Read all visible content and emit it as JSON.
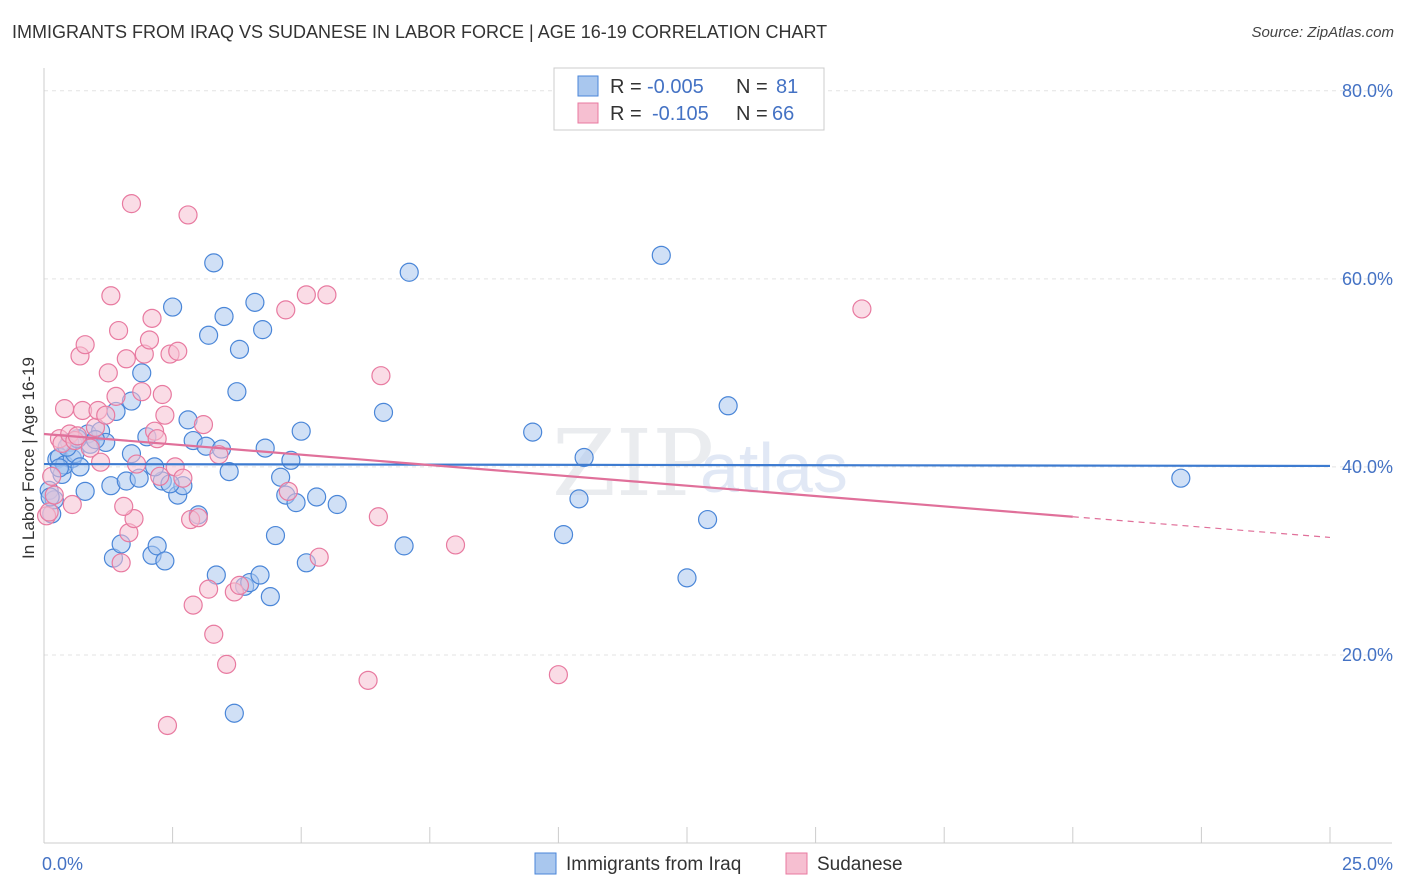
{
  "header": {
    "title": "IMMIGRANTS FROM IRAQ VS SUDANESE IN LABOR FORCE | AGE 16-19 CORRELATION CHART",
    "source": "Source: ZipAtlas.com"
  },
  "watermark": {
    "zip": "ZIP",
    "atlas": "atlas"
  },
  "legend": {
    "r_label": "R =",
    "n_label": "N =",
    "series": [
      {
        "r": "-0.005",
        "n": "81"
      },
      {
        "r": "-0.105",
        "n": "66"
      }
    ]
  },
  "chart_data": {
    "type": "scatter",
    "title": "IMMIGRANTS FROM IRAQ VS SUDANESE IN LABOR FORCE | AGE 16-19 CORRELATION CHART",
    "xlabel": "",
    "ylabel": "In Labor Force | Age 16-19",
    "xlim": [
      0,
      25
    ],
    "ylim": [
      0,
      82
    ],
    "x_tick_labels": [
      "0.0%",
      "25.0%"
    ],
    "y_ticks": [
      20,
      40,
      60,
      80
    ],
    "y_tick_labels": [
      "20.0%",
      "40.0%",
      "60.0%",
      "80.0%"
    ],
    "grid": true,
    "legend_position": "top-center",
    "colors": {
      "iraq": "#4a86d8",
      "sudanese": "#e87aa0",
      "iraq_fill": "#a9c7ee",
      "sudanese_fill": "#f6bfd1"
    },
    "series": [
      {
        "name": "Immigrants from Iraq",
        "r": -0.005,
        "n": 81,
        "trend": {
          "x": [
            0.0,
            25.0
          ],
          "y": [
            40.3,
            40.1
          ],
          "dashed_from": null
        },
        "points": [
          [
            0.1,
            37.5
          ],
          [
            0.15,
            35.0
          ],
          [
            0.2,
            36.5
          ],
          [
            0.25,
            40.8
          ],
          [
            0.3,
            41.0
          ],
          [
            0.35,
            39.2
          ],
          [
            0.4,
            40.2
          ],
          [
            0.5,
            42.6
          ],
          [
            0.55,
            40.9
          ],
          [
            0.6,
            41.4
          ],
          [
            0.7,
            40.0
          ],
          [
            0.8,
            37.4
          ],
          [
            0.85,
            43.5
          ],
          [
            0.9,
            42.4
          ],
          [
            1.1,
            43.8
          ],
          [
            1.2,
            42.6
          ],
          [
            1.3,
            38.0
          ],
          [
            1.35,
            30.3
          ],
          [
            1.5,
            31.8
          ],
          [
            1.6,
            38.5
          ],
          [
            1.7,
            41.4
          ],
          [
            1.85,
            38.8
          ],
          [
            1.9,
            50.0
          ],
          [
            2.0,
            43.2
          ],
          [
            2.1,
            30.6
          ],
          [
            2.2,
            31.6
          ],
          [
            2.3,
            38.5
          ],
          [
            2.35,
            30.0
          ],
          [
            2.5,
            57.0
          ],
          [
            2.6,
            37.0
          ],
          [
            2.7,
            38.0
          ],
          [
            2.9,
            42.8
          ],
          [
            3.0,
            34.9
          ],
          [
            3.15,
            42.2
          ],
          [
            3.2,
            54.0
          ],
          [
            3.3,
            61.7
          ],
          [
            3.35,
            28.5
          ],
          [
            3.5,
            56.0
          ],
          [
            3.6,
            39.5
          ],
          [
            3.7,
            13.8
          ],
          [
            3.75,
            48.0
          ],
          [
            3.8,
            52.5
          ],
          [
            3.9,
            27.3
          ],
          [
            4.0,
            27.7
          ],
          [
            4.1,
            57.5
          ],
          [
            4.2,
            28.5
          ],
          [
            4.25,
            54.6
          ],
          [
            4.3,
            42.0
          ],
          [
            4.4,
            26.2
          ],
          [
            4.5,
            32.7
          ],
          [
            4.6,
            38.9
          ],
          [
            4.7,
            37.0
          ],
          [
            4.8,
            40.7
          ],
          [
            4.9,
            36.2
          ],
          [
            5.0,
            43.8
          ],
          [
            5.1,
            29.8
          ],
          [
            5.3,
            36.8
          ],
          [
            5.7,
            36.0
          ],
          [
            6.6,
            45.8
          ],
          [
            7.0,
            31.6
          ],
          [
            7.1,
            60.7
          ],
          [
            9.5,
            43.7
          ],
          [
            10.1,
            32.8
          ],
          [
            10.4,
            36.6
          ],
          [
            10.5,
            41.0
          ],
          [
            12.0,
            62.5
          ],
          [
            12.5,
            28.2
          ],
          [
            12.9,
            34.4
          ],
          [
            13.3,
            46.5
          ],
          [
            22.1,
            38.8
          ],
          [
            0.12,
            36.8
          ],
          [
            0.45,
            42.1
          ],
          [
            0.65,
            43.0
          ],
          [
            1.0,
            42.9
          ],
          [
            1.4,
            45.9
          ],
          [
            1.7,
            47.0
          ],
          [
            2.15,
            40.0
          ],
          [
            2.45,
            38.2
          ],
          [
            2.8,
            45.0
          ],
          [
            3.45,
            41.9
          ],
          [
            0.3,
            39.9
          ]
        ]
      },
      {
        "name": "Sudanese",
        "r": -0.105,
        "n": 66,
        "trend": {
          "x": [
            0.0,
            25.0
          ],
          "y": [
            43.5,
            32.5
          ],
          "dashed_from": 20.0
        },
        "points": [
          [
            0.05,
            34.8
          ],
          [
            0.1,
            35.2
          ],
          [
            0.2,
            37.0
          ],
          [
            0.3,
            43.0
          ],
          [
            0.35,
            42.5
          ],
          [
            0.4,
            46.2
          ],
          [
            0.5,
            43.5
          ],
          [
            0.55,
            36.0
          ],
          [
            0.6,
            42.8
          ],
          [
            0.7,
            51.8
          ],
          [
            0.75,
            46.0
          ],
          [
            0.8,
            53.0
          ],
          [
            0.9,
            42.0
          ],
          [
            1.0,
            44.2
          ],
          [
            1.05,
            46.0
          ],
          [
            1.1,
            40.5
          ],
          [
            1.2,
            45.5
          ],
          [
            1.25,
            50.0
          ],
          [
            1.3,
            58.2
          ],
          [
            1.4,
            47.5
          ],
          [
            1.45,
            54.5
          ],
          [
            1.5,
            29.8
          ],
          [
            1.6,
            51.5
          ],
          [
            1.65,
            33.0
          ],
          [
            1.7,
            68.0
          ],
          [
            1.75,
            34.5
          ],
          [
            1.8,
            40.3
          ],
          [
            1.9,
            48.0
          ],
          [
            1.95,
            52.0
          ],
          [
            2.05,
            53.5
          ],
          [
            2.1,
            55.8
          ],
          [
            2.15,
            43.8
          ],
          [
            2.2,
            43.0
          ],
          [
            2.25,
            39.0
          ],
          [
            2.3,
            47.7
          ],
          [
            2.4,
            12.5
          ],
          [
            2.45,
            52.0
          ],
          [
            2.55,
            40.0
          ],
          [
            2.6,
            52.3
          ],
          [
            2.7,
            38.8
          ],
          [
            2.8,
            66.8
          ],
          [
            2.85,
            34.4
          ],
          [
            2.9,
            25.3
          ],
          [
            3.0,
            34.6
          ],
          [
            3.1,
            44.5
          ],
          [
            3.2,
            27.0
          ],
          [
            3.3,
            22.2
          ],
          [
            3.4,
            41.3
          ],
          [
            3.55,
            19.0
          ],
          [
            3.7,
            26.7
          ],
          [
            3.8,
            27.4
          ],
          [
            4.7,
            56.7
          ],
          [
            4.75,
            37.4
          ],
          [
            5.1,
            58.3
          ],
          [
            5.35,
            30.4
          ],
          [
            5.5,
            58.3
          ],
          [
            6.3,
            17.3
          ],
          [
            6.5,
            34.7
          ],
          [
            6.55,
            49.7
          ],
          [
            8.0,
            31.7
          ],
          [
            10.0,
            17.9
          ],
          [
            15.9,
            56.8
          ],
          [
            0.15,
            39.0
          ],
          [
            0.65,
            43.3
          ],
          [
            1.55,
            35.8
          ],
          [
            2.35,
            45.5
          ]
        ]
      }
    ]
  },
  "bottom_legend": [
    {
      "label": "Immigrants from Iraq"
    },
    {
      "label": "Sudanese"
    }
  ]
}
